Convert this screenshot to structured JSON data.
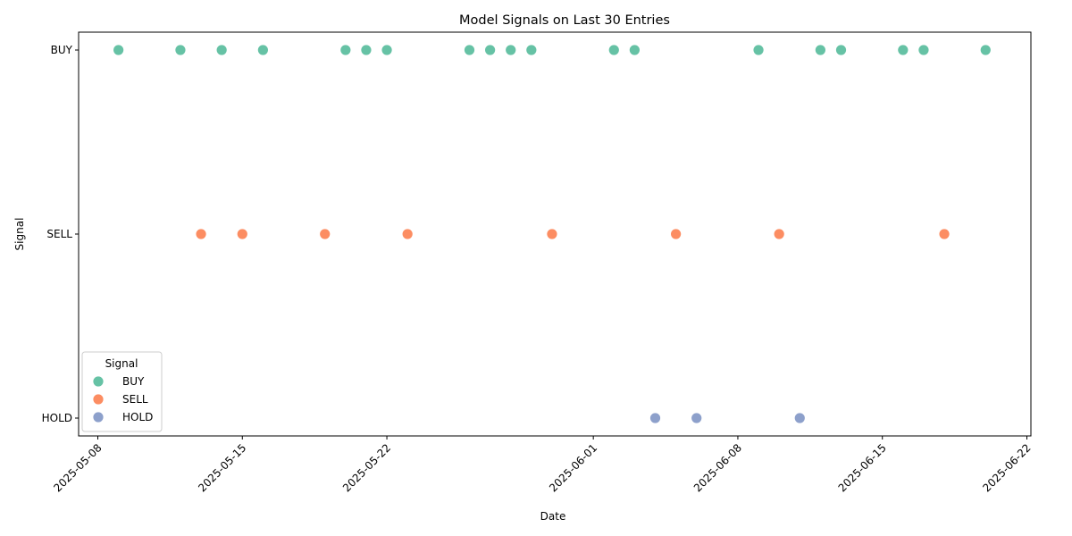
{
  "chart_data": {
    "type": "scatter",
    "title": "Model Signals on Last 30 Entries",
    "xlabel": "Date",
    "ylabel": "Signal",
    "y_categories": [
      "BUY",
      "SELL",
      "HOLD"
    ],
    "xlim": [
      "2025-05-07",
      "2025-06-22"
    ],
    "x_ticks": [
      "2025-05-08",
      "2025-05-15",
      "2025-05-22",
      "2025-06-01",
      "2025-06-08",
      "2025-06-15",
      "2025-06-22"
    ],
    "grid": false,
    "legend": {
      "title": "Signal",
      "placement": "lower-left"
    },
    "series": [
      {
        "name": "BUY",
        "color": "#66c2a5",
        "x": [
          "2025-05-09",
          "2025-05-12",
          "2025-05-14",
          "2025-05-16",
          "2025-05-20",
          "2025-05-21",
          "2025-05-22",
          "2025-05-26",
          "2025-05-27",
          "2025-05-28",
          "2025-05-29",
          "2025-06-02",
          "2025-06-03",
          "2025-06-09",
          "2025-06-12",
          "2025-06-13",
          "2025-06-16",
          "2025-06-17",
          "2025-06-20"
        ],
        "y": [
          "BUY",
          "BUY",
          "BUY",
          "BUY",
          "BUY",
          "BUY",
          "BUY",
          "BUY",
          "BUY",
          "BUY",
          "BUY",
          "BUY",
          "BUY",
          "BUY",
          "BUY",
          "BUY",
          "BUY",
          "BUY",
          "BUY"
        ]
      },
      {
        "name": "SELL",
        "color": "#fc8d62",
        "x": [
          "2025-05-13",
          "2025-05-15",
          "2025-05-19",
          "2025-05-23",
          "2025-05-30",
          "2025-06-05",
          "2025-06-10",
          "2025-06-18"
        ],
        "y": [
          "SELL",
          "SELL",
          "SELL",
          "SELL",
          "SELL",
          "SELL",
          "SELL",
          "SELL"
        ]
      },
      {
        "name": "HOLD",
        "color": "#8da0cb",
        "x": [
          "2025-06-04",
          "2025-06-06",
          "2025-06-11"
        ],
        "y": [
          "HOLD",
          "HOLD",
          "HOLD"
        ]
      }
    ]
  }
}
